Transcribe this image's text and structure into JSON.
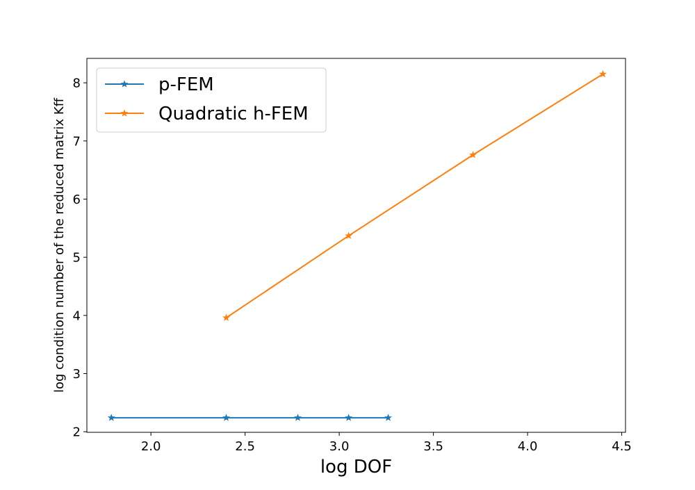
{
  "chart_data": {
    "type": "line",
    "title": "",
    "xlabel": "log DOF",
    "ylabel": "log condition number of the reduced matrix Kff",
    "xlim": [
      1.66,
      4.52
    ],
    "ylim": [
      1.99,
      8.42
    ],
    "xticks": [
      2.0,
      2.5,
      3.0,
      3.5,
      4.0,
      4.5
    ],
    "xtick_labels": [
      "2.0",
      "2.5",
      "3.0",
      "3.5",
      "4.0",
      "4.5"
    ],
    "yticks": [
      2,
      3,
      4,
      5,
      6,
      7,
      8
    ],
    "ytick_labels": [
      "2",
      "3",
      "4",
      "5",
      "6",
      "7",
      "8"
    ],
    "grid": false,
    "legend_position": "top-left",
    "marker": "star",
    "series": [
      {
        "name": "p-FEM",
        "color": "#1f77b4",
        "x": [
          1.79,
          2.4,
          2.78,
          3.05,
          3.26
        ],
        "y": [
          2.24,
          2.24,
          2.24,
          2.24,
          2.24
        ]
      },
      {
        "name": "Quadratic h-FEM",
        "color": "#ff7f0e",
        "x": [
          2.4,
          3.05,
          3.71,
          4.4
        ],
        "y": [
          3.96,
          5.37,
          6.76,
          8.15
        ]
      }
    ]
  }
}
